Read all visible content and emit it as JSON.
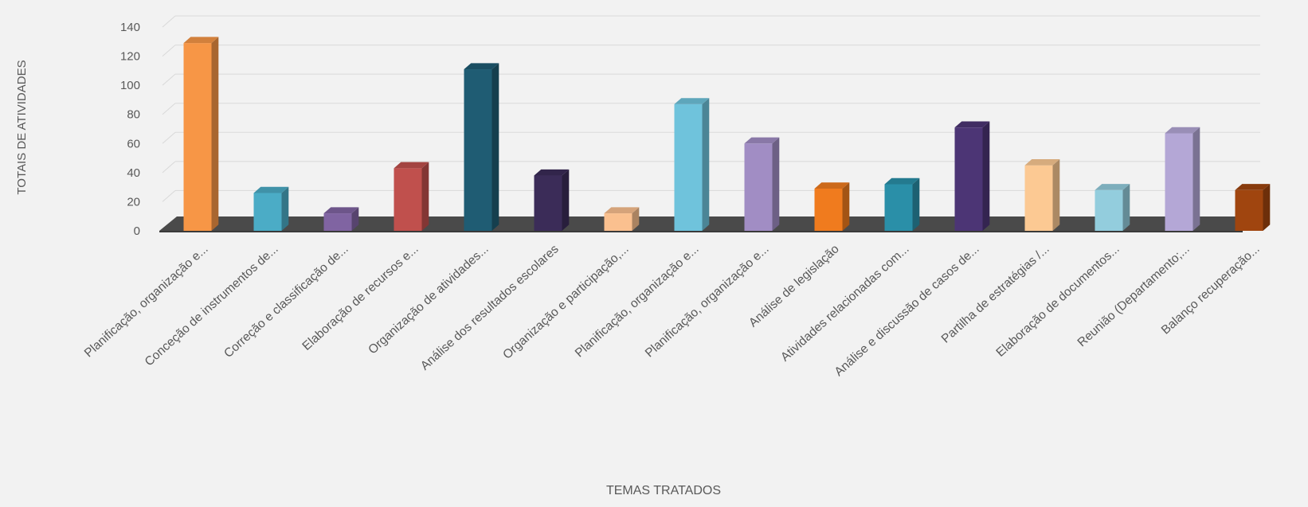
{
  "chart_data": {
    "type": "bar",
    "style": "3d-column",
    "title": "",
    "xlabel": "TEMAS TRATADOS",
    "ylabel": "TOTAIS DE ATIVIDADES",
    "ylim": [
      0,
      140
    ],
    "yticks": [
      0,
      20,
      40,
      60,
      80,
      100,
      120,
      140
    ],
    "grid": true,
    "legend": "none",
    "categories": [
      "Planificação, organização e...",
      "Conceção de  instrumentos de...",
      "Correção e classificação de...",
      "Elaboração de recursos e...",
      "Organização de atividades...",
      "Análise dos resultados escolares",
      "Organização e participação,...",
      "Planificação, organização e...",
      "Planificação, organização e...",
      "Análise de legislação",
      "Atividades relacionadas com...",
      "Análise e discussão de casos de...",
      "Partilha de estratégias /...",
      "Elaboração de documentos...",
      "Reunião (Departamento;...",
      "Balanço recuperação..."
    ],
    "values": [
      129,
      26,
      12,
      43,
      111,
      38,
      12,
      87,
      60,
      29,
      32,
      71,
      45,
      28,
      67,
      28
    ],
    "colors": [
      "#f79646",
      "#4bacc6",
      "#8064a2",
      "#c0504d",
      "#1f5c73",
      "#3b2c58",
      "#fac08f",
      "#6fc3dc",
      "#a18dc4",
      "#f07b1e",
      "#2a8fa8",
      "#4c3575",
      "#fcc993",
      "#93cddd",
      "#b4a7d6",
      "#a0450f"
    ]
  }
}
